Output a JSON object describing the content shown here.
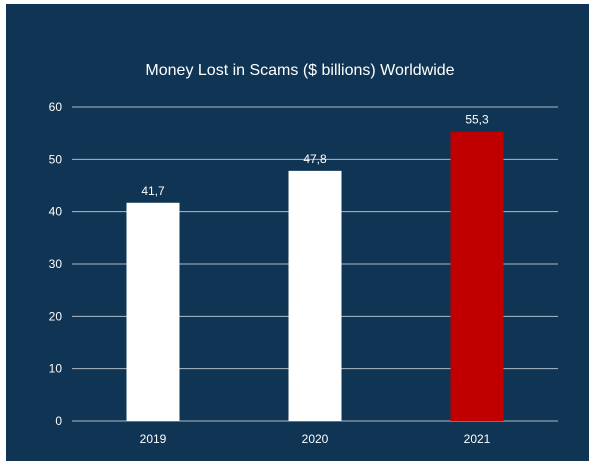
{
  "chart_data": {
    "type": "bar",
    "title": "Money Lost in Scams ($ billions) Worldwide",
    "xlabel": "",
    "ylabel": "",
    "categories": [
      "2019",
      "2020",
      "2021"
    ],
    "values": [
      41.7,
      47.8,
      55.3
    ],
    "value_labels": [
      "41,7",
      "47,8",
      "55,3"
    ],
    "bar_colors": [
      "#ffffff",
      "#ffffff",
      "#c00000"
    ],
    "ylim": [
      0,
      60
    ],
    "yticks": [
      0,
      10,
      20,
      30,
      40,
      50,
      60
    ],
    "grid": true,
    "legend": "none"
  },
  "colors": {
    "background": "#0f3454",
    "text": "#ffffff",
    "highlight": "#c00000"
  }
}
